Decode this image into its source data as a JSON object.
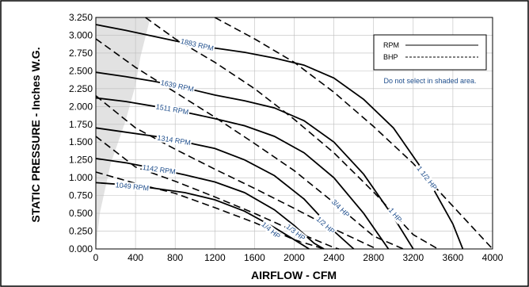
{
  "chart_data": {
    "type": "line",
    "xlabel": "AIRFLOW - CFM",
    "ylabel": "STATIC PRESSURE - Inches W.G.",
    "xlim": [
      0,
      4000
    ],
    "ylim": [
      0,
      3.25
    ],
    "x_ticks": [
      "0",
      "400",
      "800",
      "1200",
      "1600",
      "2000",
      "2400",
      "2800",
      "3200",
      "3600",
      "4000"
    ],
    "y_ticks": [
      "0.000",
      "0.250",
      "0.500",
      "0.750",
      "1.000",
      "1.250",
      "1.500",
      "1.750",
      "2.000",
      "2.250",
      "2.500",
      "2.750",
      "3.000",
      "3.250"
    ],
    "legend": {
      "rpm_label": "RPM",
      "bhp_label": "BHP",
      "note": "Do not select in shaded area.",
      "placement": "top-right"
    },
    "shaded_region": {
      "x": [
        0,
        40,
        150,
        300,
        400,
        450,
        550
      ],
      "y": [
        0,
        0.5,
        1.2,
        1.8,
        2.3,
        2.7,
        3.25
      ]
    },
    "rpm_series": [
      {
        "name": "1883 RPM",
        "label": "1883 RPM",
        "x": [
          0,
          300,
          600,
          900,
          1200,
          1500,
          1800,
          2100,
          2400,
          2700,
          3000,
          3300,
          3600,
          3700
        ],
        "y": [
          3.15,
          3.07,
          2.98,
          2.89,
          2.82,
          2.76,
          2.68,
          2.58,
          2.4,
          2.1,
          1.7,
          1.1,
          0.35,
          0.0
        ]
      },
      {
        "name": "1639 RPM",
        "label": "1639 RPM",
        "x": [
          0,
          300,
          600,
          900,
          1200,
          1500,
          1800,
          2100,
          2400,
          2700,
          3000,
          3200
        ],
        "y": [
          2.48,
          2.42,
          2.35,
          2.26,
          2.16,
          2.08,
          1.98,
          1.8,
          1.5,
          1.05,
          0.45,
          0.0
        ]
      },
      {
        "name": "1511 RPM",
        "label": "1511 RPM",
        "x": [
          0,
          300,
          600,
          900,
          1200,
          1500,
          1800,
          2100,
          2400,
          2700,
          2950
        ],
        "y": [
          2.12,
          2.07,
          2.0,
          1.92,
          1.83,
          1.73,
          1.58,
          1.35,
          1.0,
          0.5,
          0.0
        ]
      },
      {
        "name": "1314 RPM",
        "label": "1314 RPM",
        "x": [
          0,
          300,
          600,
          900,
          1200,
          1500,
          1800,
          2100,
          2400,
          2600
        ],
        "y": [
          1.7,
          1.64,
          1.58,
          1.5,
          1.41,
          1.25,
          1.03,
          0.7,
          0.25,
          0.0
        ]
      },
      {
        "name": "1142 RPM",
        "label": "1142 RPM",
        "x": [
          0,
          300,
          600,
          900,
          1200,
          1500,
          1800,
          2000,
          2200,
          2300
        ],
        "y": [
          1.27,
          1.21,
          1.13,
          1.04,
          0.94,
          0.79,
          0.55,
          0.33,
          0.08,
          0.0
        ]
      },
      {
        "name": "1049 RPM",
        "label": "1049 RPM",
        "x": [
          0,
          300,
          600,
          900,
          1200,
          1500,
          1800,
          2000,
          2150
        ],
        "y": [
          0.93,
          0.9,
          0.85,
          0.79,
          0.69,
          0.53,
          0.3,
          0.13,
          0.0
        ]
      }
    ],
    "bhp_series": [
      {
        "name": "1 1/2 HP",
        "label": "1 1/2 HP",
        "x": [
          1200,
          1600,
          2000,
          2400,
          2800,
          3200,
          3600,
          4000
        ],
        "y": [
          3.25,
          2.95,
          2.62,
          2.2,
          1.72,
          1.2,
          0.6,
          0.0
        ]
      },
      {
        "name": "1 HP",
        "label": "1 HP",
        "x": [
          500,
          800,
          1200,
          1600,
          2000,
          2400,
          2800,
          3200,
          3450
        ],
        "y": [
          3.25,
          2.95,
          2.62,
          2.25,
          1.82,
          1.35,
          0.8,
          0.2,
          0.0
        ]
      },
      {
        "name": "3/4 HP",
        "label": "3/4 HP",
        "x": [
          0,
          400,
          800,
          1200,
          1600,
          2000,
          2400,
          2800,
          3100
        ],
        "y": [
          2.95,
          2.55,
          2.2,
          1.85,
          1.48,
          1.1,
          0.65,
          0.18,
          0.0
        ]
      },
      {
        "name": "1/2 HP",
        "label": "1/2 HP",
        "x": [
          0,
          400,
          800,
          1200,
          1600,
          2000,
          2400,
          2800,
          2820
        ],
        "y": [
          2.15,
          1.7,
          1.4,
          1.12,
          0.85,
          0.57,
          0.28,
          0.02,
          0.0
        ]
      },
      {
        "name": "1/3 HP",
        "label": "1/3 HP",
        "x": [
          0,
          400,
          800,
          1200,
          1600,
          2000,
          2400,
          2450
        ],
        "y": [
          1.58,
          1.15,
          0.95,
          0.73,
          0.5,
          0.25,
          0.02,
          0.0
        ]
      },
      {
        "name": "1/4 HP",
        "label": "1/4 HP",
        "x": [
          0,
          400,
          800,
          1200,
          1600,
          2000,
          2300
        ],
        "y": [
          1.08,
          0.92,
          0.78,
          0.58,
          0.37,
          0.13,
          0.0
        ]
      }
    ],
    "grid": true
  }
}
